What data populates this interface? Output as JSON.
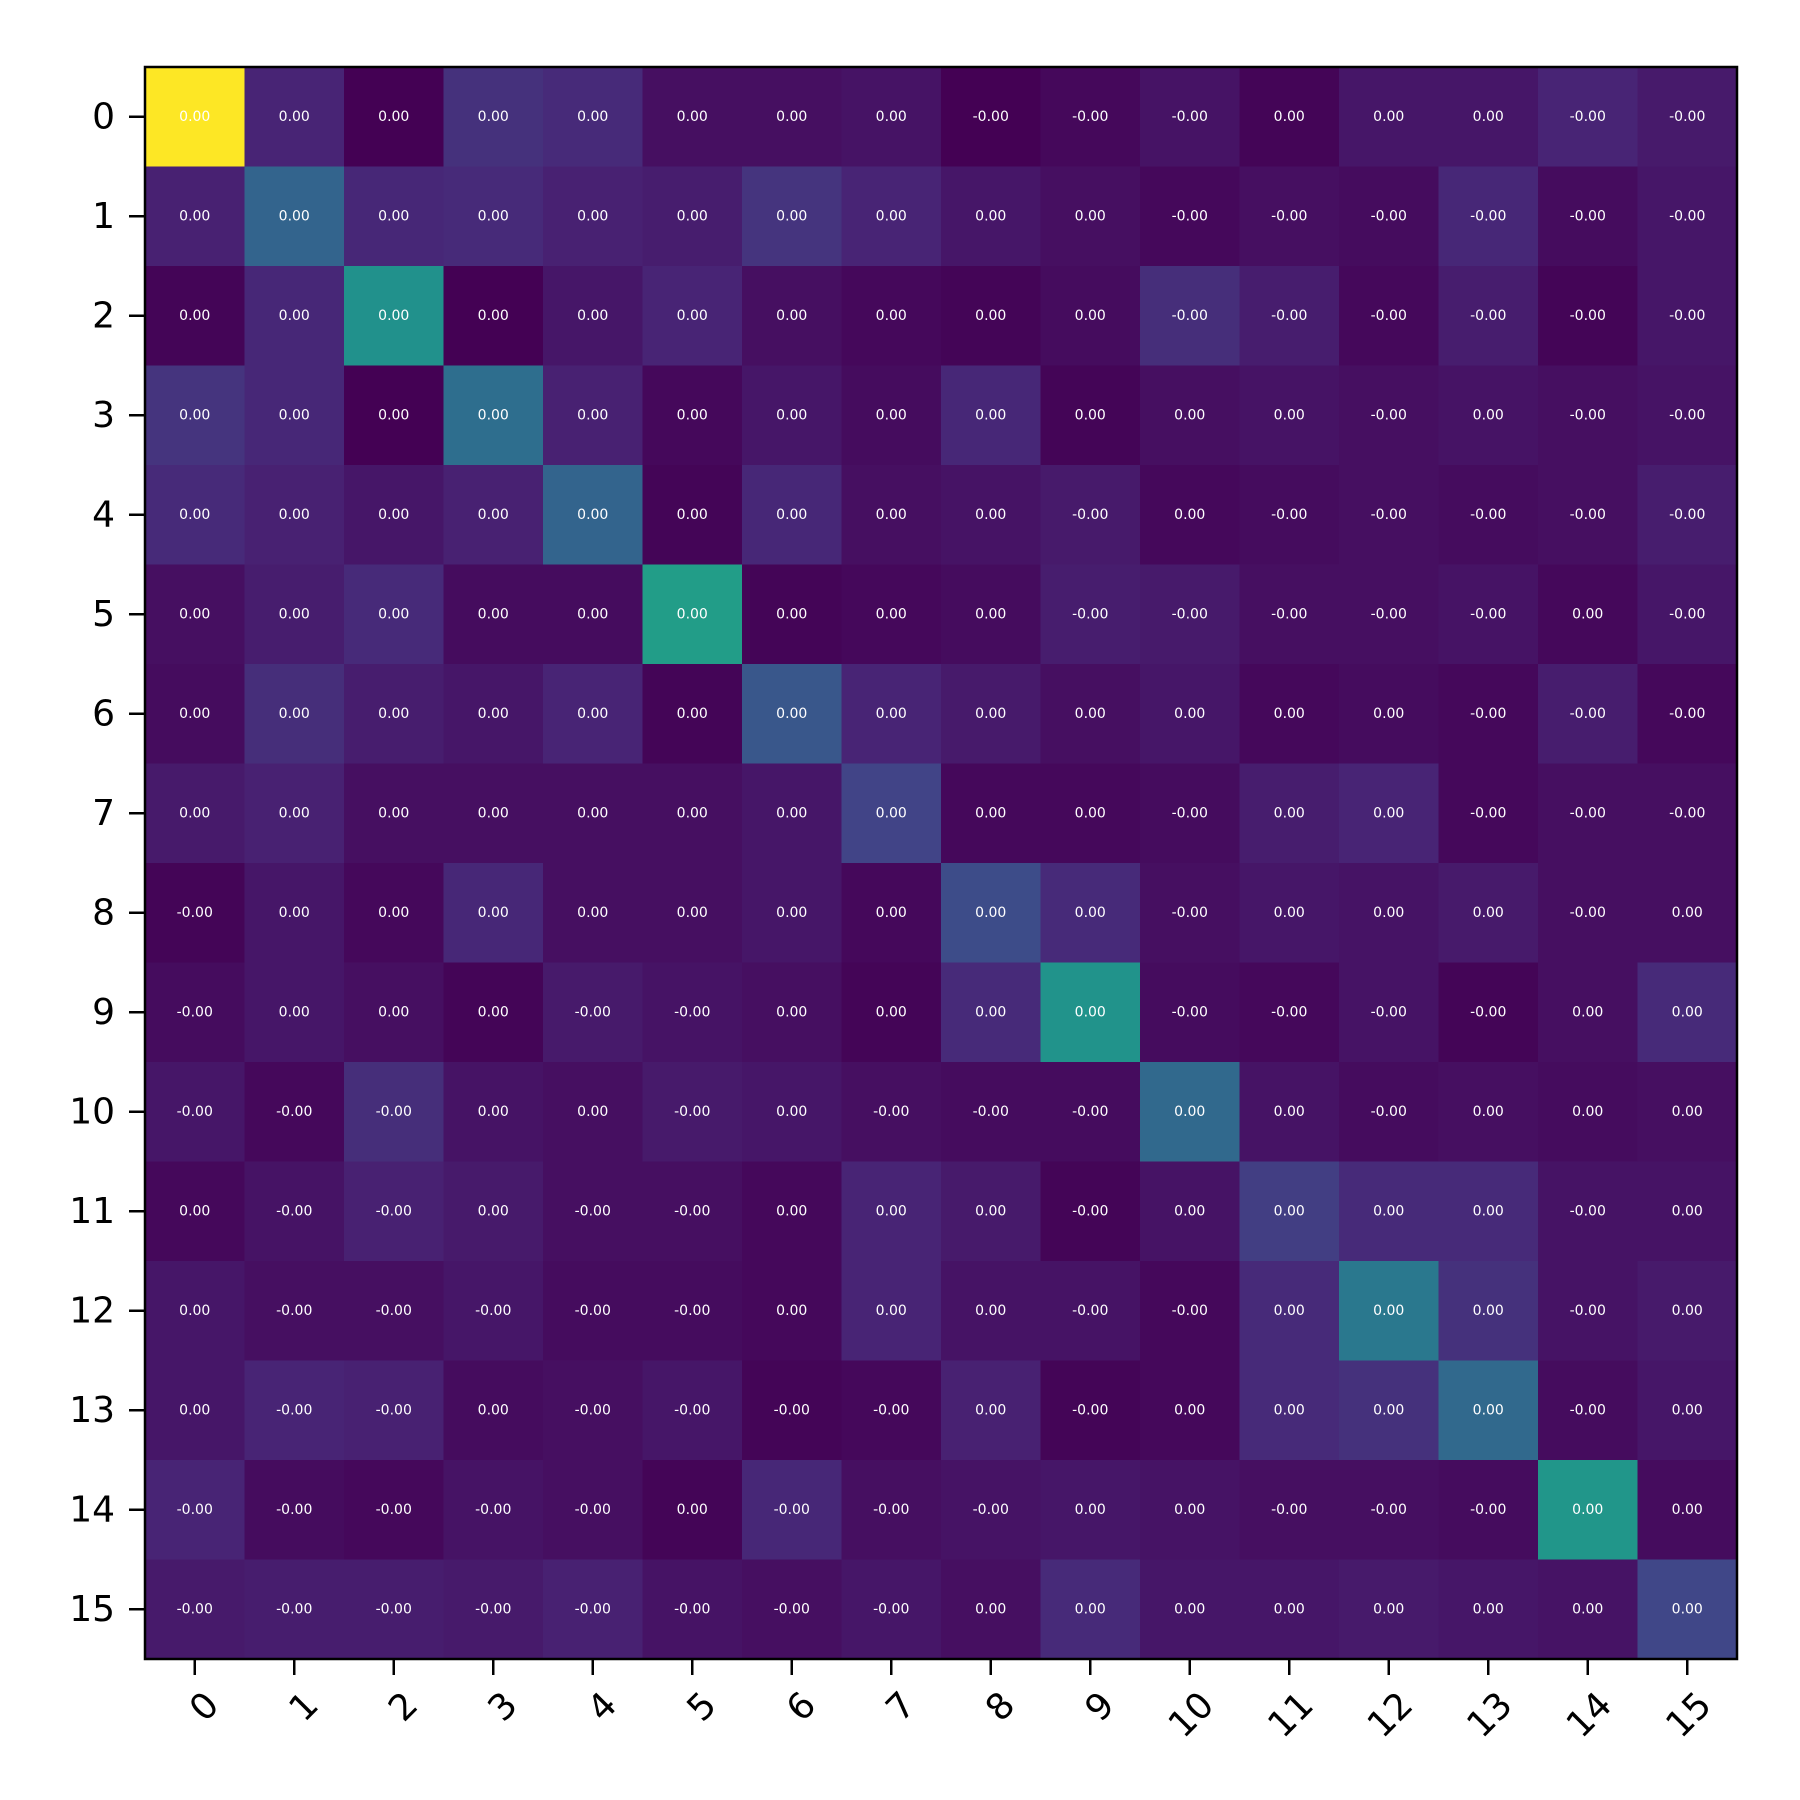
{
  "chart_data": {
    "type": "heatmap",
    "title": "",
    "xlabel": "",
    "ylabel": "",
    "x_categories": [
      "0",
      "1",
      "2",
      "3",
      "4",
      "5",
      "6",
      "7",
      "8",
      "9",
      "10",
      "11",
      "12",
      "13",
      "14",
      "15"
    ],
    "y_categories": [
      "0",
      "1",
      "2",
      "3",
      "4",
      "5",
      "6",
      "7",
      "8",
      "9",
      "10",
      "11",
      "12",
      "13",
      "14",
      "15"
    ],
    "colormap": "viridis",
    "colorbar": false,
    "grid": false,
    "cell_labels": [
      [
        "0.00",
        "0.00",
        "0.00",
        "0.00",
        "0.00",
        "0.00",
        "0.00",
        "0.00",
        "-0.00",
        "-0.00",
        "-0.00",
        "0.00",
        "0.00",
        "0.00",
        "-0.00",
        "-0.00"
      ],
      [
        "0.00",
        "0.00",
        "0.00",
        "0.00",
        "0.00",
        "0.00",
        "0.00",
        "0.00",
        "0.00",
        "0.00",
        "-0.00",
        "-0.00",
        "-0.00",
        "-0.00",
        "-0.00",
        "-0.00"
      ],
      [
        "0.00",
        "0.00",
        "0.00",
        "0.00",
        "0.00",
        "0.00",
        "0.00",
        "0.00",
        "0.00",
        "0.00",
        "-0.00",
        "-0.00",
        "-0.00",
        "-0.00",
        "-0.00",
        "-0.00"
      ],
      [
        "0.00",
        "0.00",
        "0.00",
        "0.00",
        "0.00",
        "0.00",
        "0.00",
        "0.00",
        "0.00",
        "0.00",
        "0.00",
        "0.00",
        "-0.00",
        "0.00",
        "-0.00",
        "-0.00"
      ],
      [
        "0.00",
        "0.00",
        "0.00",
        "0.00",
        "0.00",
        "0.00",
        "0.00",
        "0.00",
        "0.00",
        "-0.00",
        "0.00",
        "-0.00",
        "-0.00",
        "-0.00",
        "-0.00",
        "-0.00"
      ],
      [
        "0.00",
        "0.00",
        "0.00",
        "0.00",
        "0.00",
        "0.00",
        "0.00",
        "0.00",
        "0.00",
        "-0.00",
        "-0.00",
        "-0.00",
        "-0.00",
        "-0.00",
        "0.00",
        "-0.00"
      ],
      [
        "0.00",
        "0.00",
        "0.00",
        "0.00",
        "0.00",
        "0.00",
        "0.00",
        "0.00",
        "0.00",
        "0.00",
        "0.00",
        "0.00",
        "0.00",
        "-0.00",
        "-0.00",
        "-0.00"
      ],
      [
        "0.00",
        "0.00",
        "0.00",
        "0.00",
        "0.00",
        "0.00",
        "0.00",
        "0.00",
        "0.00",
        "0.00",
        "-0.00",
        "0.00",
        "0.00",
        "-0.00",
        "-0.00",
        "-0.00"
      ],
      [
        "-0.00",
        "0.00",
        "0.00",
        "0.00",
        "0.00",
        "0.00",
        "0.00",
        "0.00",
        "0.00",
        "0.00",
        "-0.00",
        "0.00",
        "0.00",
        "0.00",
        "-0.00",
        "0.00"
      ],
      [
        "-0.00",
        "0.00",
        "0.00",
        "0.00",
        "-0.00",
        "-0.00",
        "0.00",
        "0.00",
        "0.00",
        "0.00",
        "-0.00",
        "-0.00",
        "-0.00",
        "-0.00",
        "0.00",
        "0.00"
      ],
      [
        "-0.00",
        "-0.00",
        "-0.00",
        "0.00",
        "0.00",
        "-0.00",
        "0.00",
        "-0.00",
        "-0.00",
        "-0.00",
        "0.00",
        "0.00",
        "-0.00",
        "0.00",
        "0.00",
        "0.00"
      ],
      [
        "0.00",
        "-0.00",
        "-0.00",
        "0.00",
        "-0.00",
        "-0.00",
        "0.00",
        "0.00",
        "0.00",
        "-0.00",
        "0.00",
        "0.00",
        "0.00",
        "0.00",
        "-0.00",
        "0.00"
      ],
      [
        "0.00",
        "-0.00",
        "-0.00",
        "-0.00",
        "-0.00",
        "-0.00",
        "0.00",
        "0.00",
        "0.00",
        "-0.00",
        "-0.00",
        "0.00",
        "0.00",
        "0.00",
        "-0.00",
        "0.00"
      ],
      [
        "0.00",
        "-0.00",
        "-0.00",
        "0.00",
        "-0.00",
        "-0.00",
        "-0.00",
        "-0.00",
        "0.00",
        "-0.00",
        "0.00",
        "0.00",
        "0.00",
        "0.00",
        "-0.00",
        "0.00"
      ],
      [
        "-0.00",
        "-0.00",
        "-0.00",
        "-0.00",
        "-0.00",
        "0.00",
        "-0.00",
        "-0.00",
        "-0.00",
        "0.00",
        "0.00",
        "-0.00",
        "-0.00",
        "-0.00",
        "0.00",
        "0.00"
      ],
      [
        "-0.00",
        "-0.00",
        "-0.00",
        "-0.00",
        "-0.00",
        "-0.00",
        "-0.00",
        "-0.00",
        "0.00",
        "0.00",
        "0.00",
        "0.00",
        "0.00",
        "0.00",
        "0.00",
        "0.00"
      ]
    ],
    "color_values": [
      [
        1.0,
        0.1,
        0.0,
        0.14,
        0.12,
        0.04,
        0.04,
        0.05,
        0.0,
        0.02,
        0.05,
        0.01,
        0.06,
        0.06,
        0.1,
        0.07
      ],
      [
        0.09,
        0.32,
        0.11,
        0.12,
        0.09,
        0.08,
        0.15,
        0.1,
        0.06,
        0.04,
        0.02,
        0.04,
        0.03,
        0.11,
        0.03,
        0.06
      ],
      [
        0.01,
        0.11,
        0.5,
        0.0,
        0.06,
        0.1,
        0.04,
        0.02,
        0.01,
        0.03,
        0.13,
        0.08,
        0.02,
        0.08,
        0.01,
        0.06
      ],
      [
        0.15,
        0.11,
        0.0,
        0.36,
        0.09,
        0.02,
        0.06,
        0.03,
        0.11,
        0.01,
        0.04,
        0.05,
        0.04,
        0.05,
        0.04,
        0.05
      ],
      [
        0.12,
        0.09,
        0.06,
        0.09,
        0.32,
        0.01,
        0.11,
        0.04,
        0.05,
        0.07,
        0.02,
        0.03,
        0.04,
        0.03,
        0.04,
        0.08
      ],
      [
        0.04,
        0.08,
        0.12,
        0.03,
        0.03,
        0.55,
        0.01,
        0.02,
        0.03,
        0.08,
        0.07,
        0.04,
        0.04,
        0.05,
        0.02,
        0.06
      ],
      [
        0.03,
        0.13,
        0.08,
        0.06,
        0.1,
        0.01,
        0.27,
        0.1,
        0.07,
        0.04,
        0.06,
        0.02,
        0.03,
        0.02,
        0.08,
        0.02
      ],
      [
        0.07,
        0.09,
        0.04,
        0.04,
        0.04,
        0.04,
        0.06,
        0.2,
        0.02,
        0.02,
        0.03,
        0.08,
        0.1,
        0.02,
        0.04,
        0.04
      ],
      [
        0.01,
        0.06,
        0.02,
        0.11,
        0.04,
        0.04,
        0.06,
        0.02,
        0.23,
        0.12,
        0.04,
        0.06,
        0.05,
        0.07,
        0.04,
        0.04
      ],
      [
        0.03,
        0.06,
        0.04,
        0.01,
        0.07,
        0.05,
        0.04,
        0.01,
        0.12,
        0.51,
        0.03,
        0.02,
        0.05,
        0.01,
        0.04,
        0.12
      ],
      [
        0.06,
        0.02,
        0.13,
        0.05,
        0.04,
        0.07,
        0.06,
        0.04,
        0.03,
        0.03,
        0.34,
        0.05,
        0.03,
        0.04,
        0.03,
        0.04
      ],
      [
        0.02,
        0.05,
        0.09,
        0.07,
        0.04,
        0.04,
        0.02,
        0.1,
        0.07,
        0.01,
        0.05,
        0.18,
        0.12,
        0.12,
        0.05,
        0.05
      ],
      [
        0.06,
        0.04,
        0.04,
        0.06,
        0.03,
        0.03,
        0.02,
        0.1,
        0.05,
        0.05,
        0.02,
        0.12,
        0.4,
        0.14,
        0.05,
        0.07
      ],
      [
        0.06,
        0.1,
        0.09,
        0.03,
        0.04,
        0.06,
        0.01,
        0.02,
        0.09,
        0.01,
        0.02,
        0.12,
        0.14,
        0.34,
        0.03,
        0.06
      ],
      [
        0.1,
        0.03,
        0.02,
        0.05,
        0.04,
        0.01,
        0.11,
        0.04,
        0.05,
        0.06,
        0.05,
        0.04,
        0.04,
        0.03,
        0.52,
        0.03
      ],
      [
        0.07,
        0.08,
        0.08,
        0.07,
        0.09,
        0.05,
        0.04,
        0.06,
        0.04,
        0.12,
        0.06,
        0.06,
        0.07,
        0.06,
        0.05,
        0.21
      ]
    ]
  }
}
